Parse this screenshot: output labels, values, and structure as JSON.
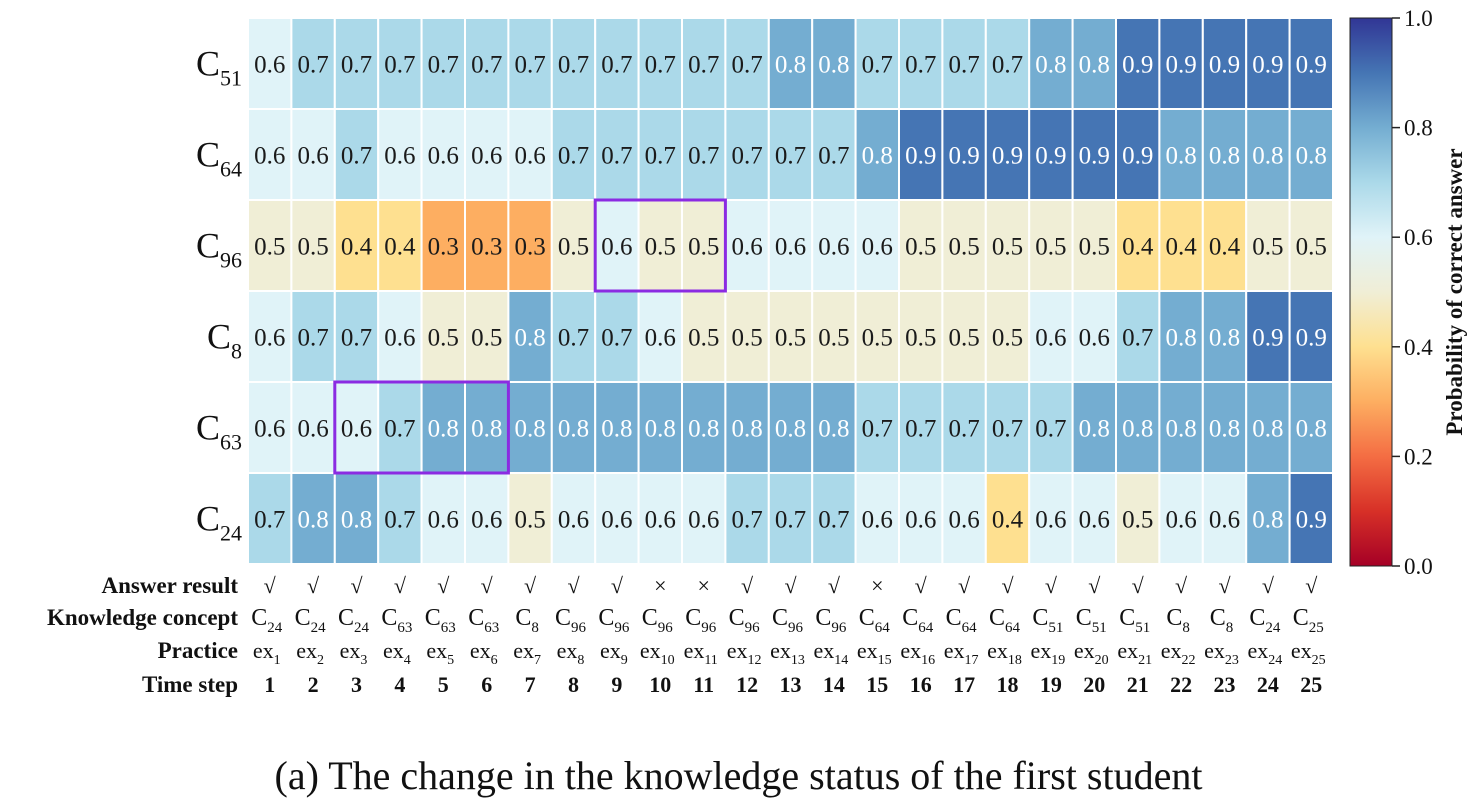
{
  "caption": "(a) The change in the knowledge status of the first student",
  "chart_data": {
    "type": "heatmap",
    "rows": [
      {
        "base": "C",
        "sub": "51"
      },
      {
        "base": "C",
        "sub": "64"
      },
      {
        "base": "C",
        "sub": "96"
      },
      {
        "base": "C",
        "sub": "8"
      },
      {
        "base": "C",
        "sub": "63"
      },
      {
        "base": "C",
        "sub": "24"
      }
    ],
    "values": [
      [
        0.6,
        0.7,
        0.7,
        0.7,
        0.7,
        0.7,
        0.7,
        0.7,
        0.7,
        0.7,
        0.7,
        0.7,
        0.8,
        0.8,
        0.7,
        0.7,
        0.7,
        0.7,
        0.8,
        0.8,
        0.9,
        0.9,
        0.9,
        0.9,
        0.9
      ],
      [
        0.6,
        0.6,
        0.7,
        0.6,
        0.6,
        0.6,
        0.6,
        0.7,
        0.7,
        0.7,
        0.7,
        0.7,
        0.7,
        0.7,
        0.8,
        0.9,
        0.9,
        0.9,
        0.9,
        0.9,
        0.9,
        0.8,
        0.8,
        0.8,
        0.8
      ],
      [
        0.5,
        0.5,
        0.4,
        0.4,
        0.3,
        0.3,
        0.3,
        0.5,
        0.6,
        0.5,
        0.5,
        0.6,
        0.6,
        0.6,
        0.6,
        0.5,
        0.5,
        0.5,
        0.5,
        0.5,
        0.4,
        0.4,
        0.4,
        0.5,
        0.5
      ],
      [
        0.6,
        0.7,
        0.7,
        0.6,
        0.5,
        0.5,
        0.8,
        0.7,
        0.7,
        0.6,
        0.5,
        0.5,
        0.5,
        0.5,
        0.5,
        0.5,
        0.5,
        0.5,
        0.6,
        0.6,
        0.7,
        0.8,
        0.8,
        0.9,
        0.9
      ],
      [
        0.6,
        0.6,
        0.6,
        0.7,
        0.8,
        0.8,
        0.8,
        0.8,
        0.8,
        0.8,
        0.8,
        0.8,
        0.8,
        0.8,
        0.7,
        0.7,
        0.7,
        0.7,
        0.7,
        0.8,
        0.8,
        0.8,
        0.8,
        0.8,
        0.8
      ],
      [
        0.7,
        0.8,
        0.8,
        0.7,
        0.6,
        0.6,
        0.5,
        0.6,
        0.6,
        0.6,
        0.6,
        0.7,
        0.7,
        0.7,
        0.6,
        0.6,
        0.6,
        0.4,
        0.6,
        0.6,
        0.5,
        0.6,
        0.6,
        0.8,
        0.9
      ]
    ],
    "bottom_rows": {
      "answer_label": "Answer result",
      "answer": [
        "√",
        "√",
        "√",
        "√",
        "√",
        "√",
        "√",
        "√",
        "√",
        "×",
        "×",
        "√",
        "√",
        "√",
        "×",
        "√",
        "√",
        "√",
        "√",
        "√",
        "√",
        "√",
        "√",
        "√",
        "√"
      ],
      "concept_label": "Knowledge concept",
      "concepts": [
        {
          "base": "C",
          "sub": "24"
        },
        {
          "base": "C",
          "sub": "24"
        },
        {
          "base": "C",
          "sub": "24"
        },
        {
          "base": "C",
          "sub": "63"
        },
        {
          "base": "C",
          "sub": "63"
        },
        {
          "base": "C",
          "sub": "63"
        },
        {
          "base": "C",
          "sub": "8"
        },
        {
          "base": "C",
          "sub": "96"
        },
        {
          "base": "C",
          "sub": "96"
        },
        {
          "base": "C",
          "sub": "96"
        },
        {
          "base": "C",
          "sub": "96"
        },
        {
          "base": "C",
          "sub": "96"
        },
        {
          "base": "C",
          "sub": "96"
        },
        {
          "base": "C",
          "sub": "96"
        },
        {
          "base": "C",
          "sub": "64"
        },
        {
          "base": "C",
          "sub": "64"
        },
        {
          "base": "C",
          "sub": "64"
        },
        {
          "base": "C",
          "sub": "64"
        },
        {
          "base": "C",
          "sub": "51"
        },
        {
          "base": "C",
          "sub": "51"
        },
        {
          "base": "C",
          "sub": "51"
        },
        {
          "base": "C",
          "sub": "8"
        },
        {
          "base": "C",
          "sub": "8"
        },
        {
          "base": "C",
          "sub": "24"
        },
        {
          "base": "C",
          "sub": "25"
        }
      ],
      "practice_label": "Practice",
      "practice": [
        {
          "base": "ex",
          "sub": "1"
        },
        {
          "base": "ex",
          "sub": "2"
        },
        {
          "base": "ex",
          "sub": "3"
        },
        {
          "base": "ex",
          "sub": "4"
        },
        {
          "base": "ex",
          "sub": "5"
        },
        {
          "base": "ex",
          "sub": "6"
        },
        {
          "base": "ex",
          "sub": "7"
        },
        {
          "base": "ex",
          "sub": "8"
        },
        {
          "base": "ex",
          "sub": "9"
        },
        {
          "base": "ex",
          "sub": "10"
        },
        {
          "base": "ex",
          "sub": "11"
        },
        {
          "base": "ex",
          "sub": "12"
        },
        {
          "base": "ex",
          "sub": "13"
        },
        {
          "base": "ex",
          "sub": "14"
        },
        {
          "base": "ex",
          "sub": "15"
        },
        {
          "base": "ex",
          "sub": "16"
        },
        {
          "base": "ex",
          "sub": "17"
        },
        {
          "base": "ex",
          "sub": "18"
        },
        {
          "base": "ex",
          "sub": "19"
        },
        {
          "base": "ex",
          "sub": "20"
        },
        {
          "base": "ex",
          "sub": "21"
        },
        {
          "base": "ex",
          "sub": "22"
        },
        {
          "base": "ex",
          "sub": "23"
        },
        {
          "base": "ex",
          "sub": "24"
        },
        {
          "base": "ex",
          "sub": "25"
        }
      ],
      "timestep_label": "Time step",
      "timesteps": [
        "1",
        "2",
        "3",
        "4",
        "5",
        "6",
        "7",
        "8",
        "9",
        "10",
        "11",
        "12",
        "13",
        "14",
        "15",
        "16",
        "17",
        "18",
        "19",
        "20",
        "21",
        "22",
        "23",
        "24",
        "25"
      ]
    },
    "colorbar": {
      "label": "Probability of correct answer",
      "range": [
        0.0,
        1.0
      ],
      "ticks": [
        "0.0",
        "0.2",
        "0.4",
        "0.6",
        "0.8",
        "1.0"
      ],
      "stops": [
        "#a50026",
        "#d73027",
        "#f46d43",
        "#fdae61",
        "#fee090",
        "#f0eed6",
        "#e0f3f8",
        "#abd9e9",
        "#74add1",
        "#4575b4",
        "#313695"
      ]
    },
    "highlights": [
      {
        "row": 2,
        "col_start": 8,
        "col_end": 10
      },
      {
        "row": 4,
        "col_start": 2,
        "col_end": 5
      }
    ],
    "highlight_color": "#8b2be2"
  }
}
